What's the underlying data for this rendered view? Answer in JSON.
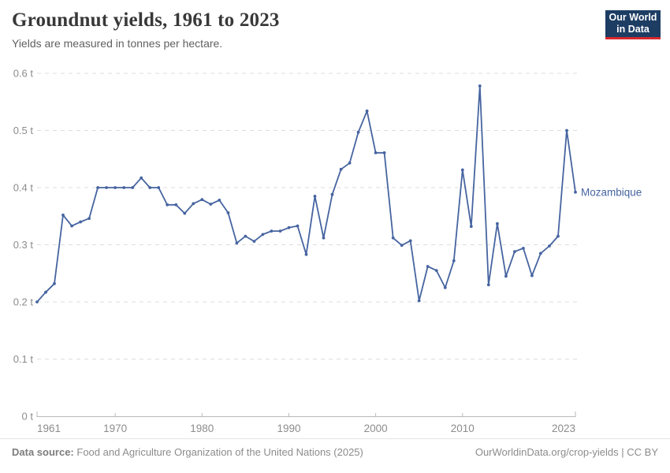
{
  "header": {
    "title": "Groundnut yields, 1961 to 2023",
    "subtitle": "Yields are measured in tonnes per hectare."
  },
  "logo": {
    "line1": "Our World",
    "line2": "in Data"
  },
  "chart_data": {
    "type": "line",
    "title": "Groundnut yields, 1961 to 2023",
    "ylabel": "tonnes per hectare",
    "unit": "t",
    "xlim": [
      1961,
      2023
    ],
    "ylim": [
      0,
      0.6
    ],
    "grid": "horizontal-dashed",
    "legend_position": "end-of-line-label",
    "line_color": "#4664a0",
    "axis_label_color": "#8c8c8c",
    "yticks": [
      {
        "value": 0,
        "label": "0 t"
      },
      {
        "value": 0.1,
        "label": "0.1 t"
      },
      {
        "value": 0.2,
        "label": "0.2 t"
      },
      {
        "value": 0.3,
        "label": "0.3 t"
      },
      {
        "value": 0.4,
        "label": "0.4 t"
      },
      {
        "value": 0.5,
        "label": "0.5 t"
      },
      {
        "value": 0.6,
        "label": "0.6 t"
      }
    ],
    "xticks": [
      {
        "value": 1961,
        "label": "1961"
      },
      {
        "value": 1970,
        "label": "1970"
      },
      {
        "value": 1980,
        "label": "1980"
      },
      {
        "value": 1990,
        "label": "1990"
      },
      {
        "value": 2000,
        "label": "2000"
      },
      {
        "value": 2010,
        "label": "2010"
      },
      {
        "value": 2023,
        "label": "2023"
      }
    ],
    "series": [
      {
        "name": "Mozambique",
        "years": [
          1961,
          1962,
          1963,
          1964,
          1965,
          1966,
          1967,
          1968,
          1969,
          1970,
          1971,
          1972,
          1973,
          1974,
          1975,
          1976,
          1977,
          1978,
          1979,
          1980,
          1981,
          1982,
          1983,
          1984,
          1985,
          1986,
          1987,
          1988,
          1989,
          1990,
          1991,
          1992,
          1993,
          1994,
          1995,
          1996,
          1997,
          1998,
          1999,
          2000,
          2001,
          2002,
          2003,
          2004,
          2005,
          2006,
          2007,
          2008,
          2009,
          2010,
          2011,
          2012,
          2013,
          2014,
          2015,
          2016,
          2017,
          2018,
          2019,
          2020,
          2021,
          2022,
          2023
        ],
        "values": [
          0.2,
          0.217,
          0.232,
          0.352,
          0.333,
          0.34,
          0.346,
          0.4,
          0.4,
          0.4,
          0.4,
          0.4,
          0.417,
          0.4,
          0.4,
          0.37,
          0.37,
          0.355,
          0.372,
          0.379,
          0.371,
          0.378,
          0.356,
          0.303,
          0.315,
          0.306,
          0.318,
          0.324,
          0.324,
          0.33,
          0.333,
          0.283,
          0.385,
          0.312,
          0.388,
          0.432,
          0.443,
          0.497,
          0.534,
          0.461,
          0.461,
          0.312,
          0.299,
          0.307,
          0.202,
          0.262,
          0.255,
          0.225,
          0.272,
          0.431,
          0.332,
          0.578,
          0.23,
          0.337,
          0.245,
          0.288,
          0.294,
          0.246,
          0.285,
          0.298,
          0.315,
          0.5,
          0.392
        ]
      }
    ]
  },
  "footer": {
    "datasource_label": "Data source:",
    "datasource_text": "Food and Agriculture Organization of the United Nations (2025)",
    "credit": "OurWorldinData.org/crop-yields | CC BY"
  }
}
